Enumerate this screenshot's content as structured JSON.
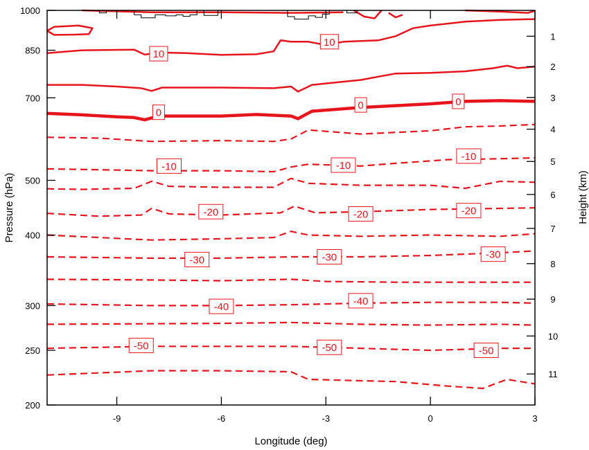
{
  "chart_data": {
    "type": "contour",
    "xlabel": "Longitude (deg)",
    "ylabel": "Pressure (hPa)",
    "y2label": "Height (km)",
    "xlim": [
      -11.0,
      3.0
    ],
    "x_ticks": [
      -9,
      -6,
      -3,
      0,
      3
    ],
    "x_tick_labels": [
      "-9",
      "-6",
      "-3",
      "0",
      "3"
    ],
    "pressure_ticks": [
      1000,
      850,
      700,
      500,
      400,
      300,
      250,
      200
    ],
    "pressure_tick_labels": [
      "1000",
      "850",
      "700",
      "500",
      "400",
      "300",
      "250",
      "200"
    ],
    "height_ticks": [
      1,
      2,
      3,
      4,
      5,
      6,
      7,
      8,
      9,
      10,
      11
    ],
    "height_tick_labels": [
      "1",
      "2",
      "3",
      "4",
      "5",
      "6",
      "7",
      "8",
      "9",
      "10",
      "11"
    ],
    "height_km_to_pressure": [
      [
        1,
        900
      ],
      [
        2,
        795
      ],
      [
        3,
        701
      ],
      [
        4,
        616
      ],
      [
        5,
        540
      ],
      [
        6,
        472
      ],
      [
        7,
        411
      ],
      [
        8,
        356
      ],
      [
        9,
        308
      ],
      [
        10,
        265
      ],
      [
        11,
        227
      ]
    ],
    "line_color": "#e8141b",
    "terrain_color": "#000000",
    "contours": [
      {
        "level": -55,
        "style": "dashed",
        "points": [
          [
            -11.0,
            226
          ],
          [
            -8.0,
            230
          ],
          [
            -6.0,
            230
          ],
          [
            -4.0,
            229
          ],
          [
            -3.5,
            222
          ],
          [
            -1.0,
            220
          ],
          [
            0.5,
            216
          ],
          [
            1.5,
            214
          ],
          [
            2.2,
            222
          ],
          [
            3.0,
            218
          ]
        ]
      },
      {
        "level": -50,
        "style": "dashed",
        "points": [
          [
            -11.0,
            252
          ],
          [
            -8.0,
            254
          ],
          [
            -4.0,
            254
          ],
          [
            -2.0,
            252
          ],
          [
            0.0,
            250
          ],
          [
            2.0,
            252
          ],
          [
            3.0,
            252
          ]
        ]
      },
      {
        "level": -45,
        "style": "dashed",
        "points": [
          [
            -11.0,
            278
          ],
          [
            -6.0,
            279
          ],
          [
            -4.0,
            280
          ],
          [
            -2.0,
            278
          ],
          [
            0.0,
            277
          ],
          [
            2.0,
            278
          ],
          [
            3.0,
            277
          ]
        ]
      },
      {
        "level": -40,
        "style": "dashed",
        "points": [
          [
            -11.0,
            302
          ],
          [
            -8.0,
            300
          ],
          [
            -6.0,
            300
          ],
          [
            -4.0,
            301
          ],
          [
            -2.0,
            303
          ],
          [
            0.0,
            304
          ],
          [
            2.0,
            304
          ],
          [
            3.0,
            303
          ]
        ]
      },
      {
        "level": -35,
        "style": "dashed",
        "points": [
          [
            -11.0,
            334
          ],
          [
            -8.0,
            333
          ],
          [
            -6.0,
            332
          ],
          [
            -4.0,
            334
          ],
          [
            -3.0,
            331
          ],
          [
            -1.0,
            330
          ],
          [
            1.0,
            330
          ],
          [
            3.0,
            330
          ]
        ]
      },
      {
        "level": -30,
        "style": "dashed",
        "points": [
          [
            -11.0,
            366
          ],
          [
            -8.0,
            364
          ],
          [
            -6.0,
            364
          ],
          [
            -4.0,
            366
          ],
          [
            -2.0,
            366
          ],
          [
            0.0,
            368
          ],
          [
            2.0,
            372
          ],
          [
            3.0,
            375
          ]
        ]
      },
      {
        "level": -25,
        "style": "dashed",
        "points": [
          [
            -11.0,
            400
          ],
          [
            -9.5,
            396
          ],
          [
            -8.0,
            392
          ],
          [
            -6.0,
            394
          ],
          [
            -4.5,
            396
          ],
          [
            -4.0,
            406
          ],
          [
            -3.5,
            400
          ],
          [
            -2.0,
            398
          ],
          [
            0.0,
            400
          ],
          [
            2.0,
            398
          ],
          [
            3.0,
            402
          ]
        ]
      },
      {
        "level": -20,
        "style": "dashed",
        "points": [
          [
            -11.0,
            437
          ],
          [
            -9.5,
            432
          ],
          [
            -8.3,
            434
          ],
          [
            -8.0,
            446
          ],
          [
            -7.5,
            436
          ],
          [
            -6.0,
            434
          ],
          [
            -4.3,
            438
          ],
          [
            -3.9,
            450
          ],
          [
            -3.3,
            438
          ],
          [
            -2.0,
            440
          ],
          [
            0.0,
            444
          ],
          [
            2.0,
            446
          ],
          [
            3.0,
            447
          ]
        ]
      },
      {
        "level": -15,
        "style": "dashed",
        "points": [
          [
            -11.0,
            483
          ],
          [
            -10.0,
            482
          ],
          [
            -8.5,
            484
          ],
          [
            -8.0,
            498
          ],
          [
            -7.5,
            488
          ],
          [
            -6.0,
            486
          ],
          [
            -4.5,
            486
          ],
          [
            -4.0,
            504
          ],
          [
            -3.5,
            494
          ],
          [
            -2.0,
            490
          ],
          [
            0.0,
            490
          ],
          [
            1.0,
            484
          ],
          [
            2.0,
            498
          ],
          [
            3.0,
            496
          ]
        ]
      },
      {
        "level": -10,
        "style": "dashed",
        "points": [
          [
            -11.0,
            524
          ],
          [
            -9.5,
            522
          ],
          [
            -8.0,
            520
          ],
          [
            -6.0,
            520
          ],
          [
            -4.5,
            518
          ],
          [
            -4.0,
            528
          ],
          [
            -3.5,
            534
          ],
          [
            -2.0,
            530
          ],
          [
            -1.0,
            536
          ],
          [
            0.5,
            544
          ],
          [
            2.0,
            546
          ],
          [
            3.0,
            548
          ]
        ]
      },
      {
        "level": -5,
        "style": "dashed",
        "points": [
          [
            -11.0,
            596
          ],
          [
            -9.5,
            594
          ],
          [
            -8.0,
            586
          ],
          [
            -6.0,
            588
          ],
          [
            -4.5,
            586
          ],
          [
            -4.0,
            592
          ],
          [
            -3.5,
            614
          ],
          [
            -2.0,
            604
          ],
          [
            0.0,
            612
          ],
          [
            1.0,
            622
          ],
          [
            2.0,
            624
          ],
          [
            3.0,
            628
          ]
        ]
      },
      {
        "level": 0,
        "style": "solid-thick",
        "points": [
          [
            -11.0,
            657
          ],
          [
            -10.0,
            653
          ],
          [
            -9.0,
            648
          ],
          [
            -8.5,
            646
          ],
          [
            -8.2,
            640
          ],
          [
            -7.8,
            650
          ],
          [
            -6.0,
            650
          ],
          [
            -5.0,
            654
          ],
          [
            -4.0,
            650
          ],
          [
            -3.8,
            643
          ],
          [
            -3.4,
            663
          ],
          [
            -2.0,
            673
          ],
          [
            -1.0,
            678
          ],
          [
            0.0,
            683
          ],
          [
            1.0,
            690
          ],
          [
            2.0,
            692
          ],
          [
            3.0,
            690
          ]
        ]
      },
      {
        "level": 5,
        "style": "solid",
        "points": [
          [
            -11.0,
            738
          ],
          [
            -10.0,
            738
          ],
          [
            -9.0,
            733
          ],
          [
            -8.3,
            728
          ],
          [
            -8.0,
            720
          ],
          [
            -7.7,
            730
          ],
          [
            -6.0,
            730
          ],
          [
            -4.5,
            728
          ],
          [
            -4.0,
            733
          ],
          [
            -3.8,
            718
          ],
          [
            -3.4,
            738
          ],
          [
            -2.0,
            753
          ],
          [
            -1.5,
            763
          ],
          [
            -1.0,
            773
          ],
          [
            0.0,
            775
          ],
          [
            1.0,
            780
          ],
          [
            1.8,
            790
          ],
          [
            2.2,
            798
          ],
          [
            2.5,
            790
          ],
          [
            3.0,
            795
          ]
        ]
      },
      {
        "level": 10,
        "style": "solid",
        "points": [
          [
            -11.0,
            840
          ],
          [
            -10.0,
            850
          ],
          [
            -8.5,
            852
          ],
          [
            -8.2,
            835
          ],
          [
            -7.8,
            842
          ],
          [
            -7.0,
            840
          ],
          [
            -6.0,
            834
          ],
          [
            -5.0,
            836
          ],
          [
            -4.5,
            846
          ],
          [
            -4.3,
            885
          ],
          [
            -4.0,
            880
          ],
          [
            -3.5,
            880
          ],
          [
            -3.0,
            868
          ],
          [
            -2.5,
            880
          ],
          [
            -1.5,
            885
          ],
          [
            -1.0,
            900
          ],
          [
            -0.5,
            930
          ],
          [
            0.0,
            940
          ],
          [
            1.0,
            955
          ],
          [
            2.0,
            962
          ],
          [
            3.0,
            965
          ]
        ]
      },
      {
        "level": 15,
        "style": "solid",
        "points": [
          [
            -10.0,
            1000
          ],
          [
            -8.0,
            992
          ],
          [
            -6.0,
            992
          ],
          [
            -4.0,
            990
          ],
          [
            -2.5,
            992
          ]
        ]
      },
      {
        "level": 15,
        "style": "solid",
        "points": [
          [
            -11.0,
            920
          ],
          [
            -10.8,
            905
          ],
          [
            -10.2,
            906
          ],
          [
            -9.8,
            908
          ],
          [
            -9.7,
            930
          ],
          [
            -10.1,
            940
          ],
          [
            -10.8,
            935
          ],
          [
            -11.0,
            920
          ]
        ]
      },
      {
        "level": 15,
        "style": "solid",
        "points": [
          [
            -2.2,
            1000
          ],
          [
            -1.9,
            975
          ],
          [
            -1.6,
            968
          ],
          [
            -1.5,
            985
          ],
          [
            -1.4,
            1000
          ]
        ]
      },
      {
        "level": 15,
        "style": "solid",
        "points": [
          [
            -1.2,
            990
          ],
          [
            -1.0,
            972
          ],
          [
            -0.8,
            982
          ]
        ]
      },
      {
        "level": 15,
        "style": "solid",
        "points": [
          [
            1.0,
            1000
          ],
          [
            2.0,
            995
          ],
          [
            2.8,
            990
          ],
          [
            3.0,
            998
          ]
        ]
      }
    ],
    "contour_labels": [
      {
        "text": "-50",
        "x": -8.3,
        "y": 255
      },
      {
        "text": "-50",
        "x": -2.9,
        "y": 253
      },
      {
        "text": "-50",
        "x": 1.6,
        "y": 250
      },
      {
        "text": "-40",
        "x": -6.0,
        "y": 299
      },
      {
        "text": "-40",
        "x": -2.0,
        "y": 306
      },
      {
        "text": "-30",
        "x": -6.7,
        "y": 362
      },
      {
        "text": "-30",
        "x": -2.9,
        "y": 366
      },
      {
        "text": "-30",
        "x": 1.8,
        "y": 370
      },
      {
        "text": "-20",
        "x": -6.3,
        "y": 440
      },
      {
        "text": "-20",
        "x": -2.0,
        "y": 436
      },
      {
        "text": "-20",
        "x": 1.1,
        "y": 442
      },
      {
        "text": "-10",
        "x": -7.5,
        "y": 530
      },
      {
        "text": "-10",
        "x": -2.5,
        "y": 532
      },
      {
        "text": "-10",
        "x": 1.1,
        "y": 552
      },
      {
        "text": "0",
        "x": -7.8,
        "y": 660
      },
      {
        "text": "0",
        "x": -2.0,
        "y": 680
      },
      {
        "text": "0",
        "x": 0.8,
        "y": 690
      },
      {
        "text": "10",
        "x": -7.8,
        "y": 838
      },
      {
        "text": "10",
        "x": -2.9,
        "y": 880
      }
    ],
    "terrain": [
      [
        -9.8,
        1000
      ],
      [
        -9.5,
        1000
      ],
      [
        -9.5,
        990
      ],
      [
        -9.3,
        990
      ],
      [
        -9.3,
        1000
      ],
      [
        -8.5,
        1000
      ],
      [
        -8.5,
        982
      ],
      [
        -8.3,
        982
      ],
      [
        -8.3,
        970
      ],
      [
        -7.9,
        970
      ],
      [
        -7.9,
        982
      ],
      [
        -7.6,
        982
      ],
      [
        -7.6,
        978
      ],
      [
        -7.3,
        978
      ],
      [
        -7.3,
        982
      ],
      [
        -7.1,
        982
      ],
      [
        -7.1,
        976
      ],
      [
        -6.9,
        976
      ],
      [
        -6.9,
        982
      ],
      [
        -6.7,
        982
      ],
      [
        -6.7,
        1000
      ],
      [
        -6.5,
        1000
      ],
      [
        -6.5,
        980
      ],
      [
        -6.1,
        980
      ],
      [
        -6.1,
        1000
      ],
      [
        -4.1,
        1000
      ],
      [
        -4.1,
        975
      ],
      [
        -3.9,
        975
      ],
      [
        -3.9,
        965
      ],
      [
        -3.5,
        965
      ],
      [
        -3.5,
        978
      ],
      [
        -3.3,
        978
      ],
      [
        -3.3,
        972
      ],
      [
        -3.1,
        972
      ],
      [
        -3.1,
        985
      ],
      [
        -2.9,
        985
      ],
      [
        -2.9,
        1000
      ],
      [
        -2.4,
        1000
      ],
      [
        -2.4,
        990
      ],
      [
        -2.1,
        990
      ],
      [
        -2.1,
        1000
      ],
      [
        3.0,
        1000
      ]
    ]
  }
}
